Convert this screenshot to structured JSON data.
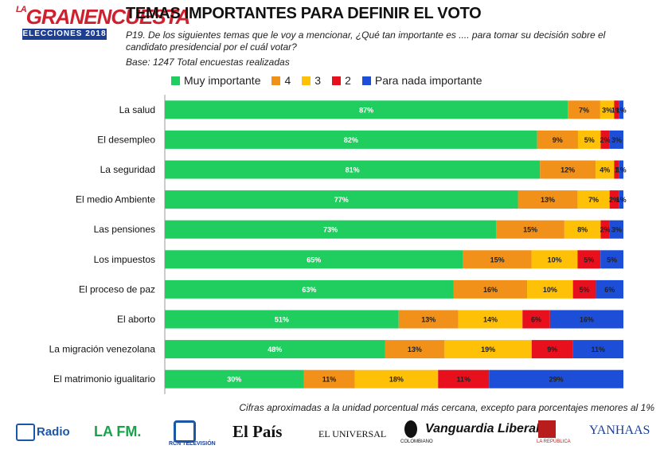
{
  "header": {
    "logo_main": "GRANENCUESTA",
    "logo_prefix": "LA",
    "logo_sub": "ELECCIONES 2018",
    "title": "TEMAS IMPORTANTES PARA DEFINIR EL VOTO",
    "question": "P19. De los siguientes temas que le voy a mencionar, ¿Qué tan importante es .... para tomar su decisión sobre el candidato presidencial por el cuál votar?",
    "base": "Base: 1247 Total encuestas realizadas"
  },
  "colors": {
    "muy": "#1fce5f",
    "c4": "#f2911a",
    "c3": "#ffc107",
    "c2": "#e8101d",
    "nada": "#1d4ed8",
    "label_text": "#ffffff"
  },
  "chart_data": {
    "type": "bar",
    "orientation": "horizontal",
    "stacked": true,
    "percent_stacked": true,
    "title": "TEMAS IMPORTANTES PARA DEFINIR EL VOTO",
    "xlabel": "",
    "ylabel": "",
    "xlim": [
      0,
      100
    ],
    "legend_position": "top",
    "categories": [
      "La salud",
      "El desempleo",
      "La seguridad",
      "El medio Ambiente",
      "Las pensiones",
      "Los impuestos",
      "El proceso de paz",
      "El aborto",
      "La migración venezolana",
      "El matrimonio igualitario"
    ],
    "series": [
      {
        "name": "Muy importante",
        "color_key": "muy",
        "values": [
          87,
          82,
          81,
          77,
          73,
          65,
          63,
          51,
          48,
          30
        ],
        "labels": [
          "87%",
          "82%",
          "81%",
          "77%",
          "73%",
          "65%",
          "63%",
          "51%",
          "48%",
          "30%"
        ]
      },
      {
        "name": "4",
        "color_key": "c4",
        "values": [
          7,
          9,
          12,
          13,
          15,
          15,
          16,
          13,
          13,
          11
        ],
        "labels": [
          "7%",
          "9%",
          "12%",
          "13%",
          "15%",
          "15%",
          "16%",
          "13%",
          "13%",
          "11%"
        ]
      },
      {
        "name": "3",
        "color_key": "c3",
        "values": [
          3,
          5,
          4,
          7,
          8,
          10,
          10,
          14,
          19,
          18
        ],
        "labels": [
          "3%",
          "5%",
          "4%",
          "7%",
          "8%",
          "10%",
          "10%",
          "14%",
          "19%",
          "18%"
        ]
      },
      {
        "name": "2",
        "color_key": "c2",
        "values": [
          1,
          2,
          1,
          2,
          2,
          5,
          5,
          6,
          9,
          11
        ],
        "labels": [
          "1%",
          "2%",
          "1",
          "2%",
          "2%",
          "5%",
          "5%",
          "6%",
          "9%",
          "11%"
        ]
      },
      {
        "name": "Para nada importante",
        "color_key": "nada",
        "values": [
          1,
          3,
          1,
          1,
          3,
          5,
          6,
          16,
          11,
          29
        ],
        "labels": [
          "1%",
          "3%",
          "1%",
          "1%",
          "3%",
          "5%",
          "6%",
          "16%",
          "11%",
          "29%"
        ]
      }
    ]
  },
  "footnote": "Cifras aproximadas a la unidad porcentual más cercana, excepto para porcentajes menores al 1%",
  "sponsors": [
    "Radio",
    "LA FM.",
    "RCN TELEVISIÓN",
    "El País",
    "EL UNIVERSAL",
    "COLOMBIANO",
    "Vanguardia Liberal",
    "LA REPÚBLICA",
    "YANHAAS"
  ]
}
